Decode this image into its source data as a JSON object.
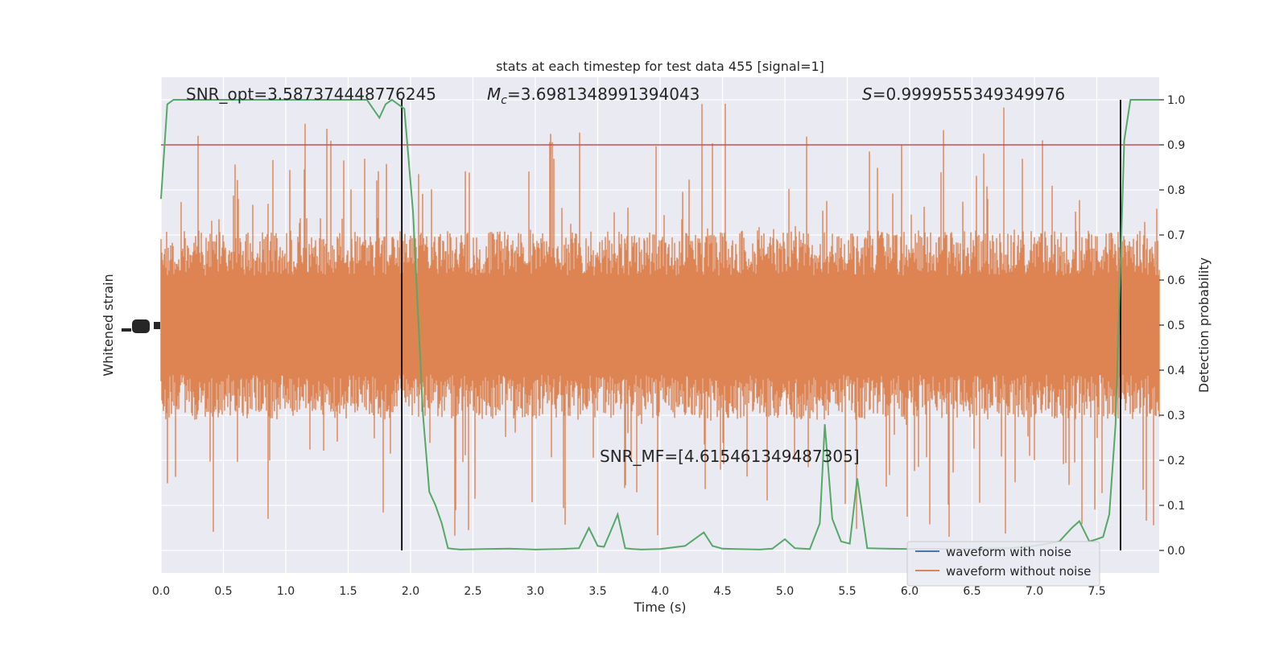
{
  "chart_data": {
    "type": "line",
    "title": "stats at each timestep for test data 455 [signal=1]",
    "xlabel": "Time (s)",
    "ylabel_left": "Whitened strain",
    "ylabel_right": "Detection probability",
    "xlim": [
      0,
      8
    ],
    "ylim_right": [
      -0.05,
      1.05
    ],
    "x_ticks": [
      "0.0",
      "0.5",
      "1.0",
      "1.5",
      "2.0",
      "2.5",
      "3.0",
      "3.5",
      "4.0",
      "4.5",
      "5.0",
      "5.5",
      "6.0",
      "6.5",
      "7.0",
      "7.5"
    ],
    "y_ticks_right": [
      "0.0",
      "0.1",
      "0.2",
      "0.3",
      "0.4",
      "0.5",
      "0.6",
      "0.7",
      "0.8",
      "0.9",
      "1.0"
    ],
    "grid": true,
    "legend_position": "lower right",
    "annotations": {
      "snr_opt": "SNR_opt=3.587374448776245",
      "mc_symbol": "M",
      "mc_subscript": "c",
      "mc_value": "=3.6981348991394043",
      "s_symbol": "S",
      "s_value": "=0.9999555349349976",
      "snr_mf": "SNR_MF=[4.615461349487305]"
    },
    "threshold": {
      "value": 0.9,
      "color": "#c44e52"
    },
    "markers": {
      "x": [
        1.93,
        7.69
      ],
      "color": "#000000"
    },
    "series": [
      {
        "name": "waveform with noise",
        "color": "#4c72b0",
        "kind": "strain"
      },
      {
        "name": "waveform without noise",
        "color": "#dd8452",
        "kind": "strain",
        "band_center": 0.5,
        "band_halfwidth": 0.2
      },
      {
        "color": "#55a868",
        "kind": "probability",
        "x": [
          0,
          0.05,
          0.1,
          0.2,
          0.5,
          1.0,
          1.5,
          1.65,
          1.75,
          1.8,
          1.85,
          1.95,
          2.02,
          2.1,
          2.15,
          2.2,
          2.25,
          2.3,
          2.35,
          2.4,
          2.6,
          2.8,
          3.0,
          3.2,
          3.35,
          3.43,
          3.5,
          3.55,
          3.6,
          3.66,
          3.72,
          3.78,
          3.85,
          4.0,
          4.2,
          4.35,
          4.42,
          4.5,
          4.6,
          4.8,
          4.9,
          5.0,
          5.08,
          5.2,
          5.28,
          5.32,
          5.38,
          5.45,
          5.52,
          5.58,
          5.66,
          5.8,
          6.0,
          6.4,
          6.8,
          7.0,
          7.2,
          7.3,
          7.36,
          7.44,
          7.5,
          7.55,
          7.6,
          7.65,
          7.72,
          7.77,
          7.9,
          8.0
        ],
        "y": [
          0.78,
          0.99,
          1.0,
          1.0,
          1.0,
          1.0,
          1.0,
          1.0,
          0.96,
          0.99,
          1.0,
          0.98,
          0.75,
          0.3,
          0.13,
          0.1,
          0.06,
          0.005,
          0.003,
          0.002,
          0.003,
          0.004,
          0.002,
          0.003,
          0.005,
          0.05,
          0.01,
          0.008,
          0.04,
          0.08,
          0.005,
          0.003,
          0.002,
          0.003,
          0.01,
          0.04,
          0.01,
          0.004,
          0.003,
          0.002,
          0.004,
          0.025,
          0.005,
          0.003,
          0.06,
          0.28,
          0.07,
          0.02,
          0.015,
          0.16,
          0.005,
          0.004,
          0.003,
          0.003,
          0.005,
          0.01,
          0.02,
          0.05,
          0.065,
          0.02,
          0.025,
          0.03,
          0.08,
          0.28,
          0.91,
          1.0,
          1.0,
          1.0
        ]
      }
    ]
  }
}
